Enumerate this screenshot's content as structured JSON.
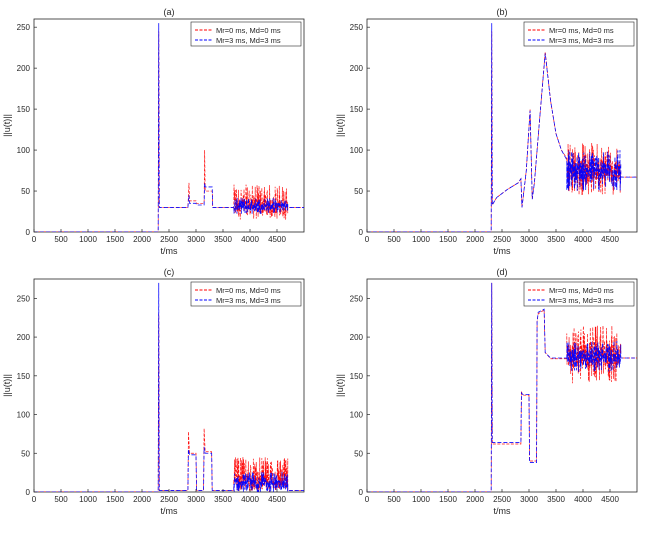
{
  "figure": {
    "background": "#ffffff"
  },
  "legend_style": {
    "red": "#ff0000",
    "blue": "#0000ff"
  },
  "chart_data": [
    {
      "id": "a",
      "type": "line",
      "title": "(a)",
      "xlabel": "t/ms",
      "ylabel": "||u(t)||",
      "xlim": [
        0,
        5000
      ],
      "ylim": [
        0,
        260
      ],
      "xticks": [
        "0",
        "500",
        "1000",
        "1500",
        "2000",
        "2500",
        "3000",
        "3500",
        "4000",
        "4500"
      ],
      "yticks": [
        "0",
        "50",
        "100",
        "150",
        "200",
        "250"
      ],
      "legend": [
        "Mr=0 ms, Md=0 ms",
        "Mr=3 ms, Md=3 ms"
      ],
      "legend_position": "top-right",
      "series": [
        {
          "name": "Mr=0 ms, Md=0 ms",
          "color": "#ff0000",
          "style": "dashed",
          "points": [
            [
              0,
              0
            ],
            [
              2300,
              0
            ],
            [
              2310,
              245
            ],
            [
              2320,
              30
            ],
            [
              2850,
              30
            ],
            [
              2870,
              60
            ],
            [
              2880,
              38
            ],
            [
              3000,
              38
            ],
            [
              3010,
              35
            ],
            [
              3150,
              35
            ],
            [
              3160,
              100
            ],
            [
              3170,
              50
            ],
            [
              3300,
              50
            ],
            [
              3310,
              30
            ],
            [
              3700,
              30
            ]
          ],
          "noise": {
            "from": 3700,
            "to": 4700,
            "center": 31,
            "min": 15,
            "max": 58
          },
          "tail": [
            [
              4700,
              30
            ],
            [
              5000,
              30
            ]
          ]
        },
        {
          "name": "Mr=3 ms, Md=3 ms",
          "color": "#0000ff",
          "style": "dashed",
          "points": [
            [
              0,
              0
            ],
            [
              2300,
              0
            ],
            [
              2310,
              255
            ],
            [
              2320,
              30
            ],
            [
              2850,
              30
            ],
            [
              2870,
              45
            ],
            [
              2880,
              35
            ],
            [
              3000,
              35
            ],
            [
              3010,
              33
            ],
            [
              3150,
              33
            ],
            [
              3160,
              60
            ],
            [
              3170,
              55
            ],
            [
              3300,
              55
            ],
            [
              3310,
              30
            ],
            [
              3700,
              30
            ]
          ],
          "noise": {
            "from": 3700,
            "to": 4700,
            "center": 31,
            "min": 22,
            "max": 42
          },
          "tail": [
            [
              4700,
              30
            ],
            [
              5000,
              30
            ]
          ]
        }
      ]
    },
    {
      "id": "b",
      "type": "line",
      "title": "(b)",
      "xlabel": "t/ms",
      "ylabel": "||u(t)||",
      "xlim": [
        0,
        5000
      ],
      "ylim": [
        0,
        260
      ],
      "xticks": [
        "0",
        "500",
        "1000",
        "1500",
        "2000",
        "2500",
        "3000",
        "3500",
        "4000",
        "4500"
      ],
      "yticks": [
        "0",
        "50",
        "100",
        "150",
        "200",
        "250"
      ],
      "legend": [
        "Mr=0 ms, Md=0 ms",
        "Mr=3 ms, Md=3 ms"
      ],
      "legend_position": "top-right",
      "series": [
        {
          "name": "Mr=0 ms, Md=0 ms",
          "color": "#ff0000",
          "style": "dashed",
          "points": [
            [
              0,
              0
            ],
            [
              2300,
              0
            ],
            [
              2310,
              245
            ],
            [
              2320,
              33
            ],
            [
              2400,
              42
            ],
            [
              2600,
              52
            ],
            [
              2800,
              60
            ],
            [
              2850,
              65
            ],
            [
              2870,
              30
            ],
            [
              2950,
              75
            ],
            [
              3020,
              150
            ],
            [
              3060,
              40
            ],
            [
              3100,
              60
            ],
            [
              3200,
              140
            ],
            [
              3300,
              220
            ],
            [
              3400,
              160
            ],
            [
              3500,
              120
            ],
            [
              3600,
              100
            ],
            [
              3700,
              90
            ]
          ],
          "noise": {
            "from": 3700,
            "to": 4700,
            "center": 75,
            "min": 45,
            "max": 110
          },
          "tail": [
            [
              4700,
              67
            ],
            [
              5000,
              67
            ]
          ]
        },
        {
          "name": "Mr=3 ms, Md=3 ms",
          "color": "#0000ff",
          "style": "dashed",
          "points": [
            [
              0,
              0
            ],
            [
              2300,
              0
            ],
            [
              2310,
              255
            ],
            [
              2320,
              33
            ],
            [
              2400,
              42
            ],
            [
              2600,
              52
            ],
            [
              2800,
              60
            ],
            [
              2850,
              65
            ],
            [
              2870,
              30
            ],
            [
              2950,
              75
            ],
            [
              3020,
              148
            ],
            [
              3060,
              40
            ],
            [
              3100,
              60
            ],
            [
              3200,
              140
            ],
            [
              3300,
              218
            ],
            [
              3400,
              160
            ],
            [
              3500,
              120
            ],
            [
              3600,
              100
            ],
            [
              3700,
              88
            ]
          ],
          "noise": {
            "from": 3700,
            "to": 4700,
            "center": 74,
            "min": 50,
            "max": 100
          },
          "tail": [
            [
              4700,
              67
            ],
            [
              5000,
              67
            ]
          ]
        }
      ]
    },
    {
      "id": "c",
      "type": "line",
      "title": "(c)",
      "xlabel": "t/ms",
      "ylabel": "||u(t)||",
      "xlim": [
        0,
        5000
      ],
      "ylim": [
        0,
        275
      ],
      "xticks": [
        "0",
        "500",
        "1000",
        "1500",
        "2000",
        "2500",
        "3000",
        "3500",
        "4000",
        "4500"
      ],
      "yticks": [
        "0",
        "50",
        "100",
        "150",
        "200",
        "250"
      ],
      "legend": [
        "Mr=0 ms, Md=0 ms",
        "Mr=3 ms, Md=3 ms"
      ],
      "legend_position": "top-right",
      "series": [
        {
          "name": "Mr=0 ms, Md=0 ms",
          "color": "#ff0000",
          "style": "dashed",
          "points": [
            [
              0,
              0
            ],
            [
              2300,
              0
            ],
            [
              2310,
              230
            ],
            [
              2320,
              2
            ],
            [
              2850,
              2
            ],
            [
              2860,
              78
            ],
            [
              2880,
              50
            ],
            [
              3000,
              50
            ],
            [
              3010,
              2
            ],
            [
              3140,
              2
            ],
            [
              3150,
              82
            ],
            [
              3170,
              52
            ],
            [
              3290,
              52
            ],
            [
              3300,
              2
            ],
            [
              3700,
              2
            ]
          ],
          "noise": {
            "from": 3700,
            "to": 4700,
            "center": 12,
            "min": 0,
            "max": 45
          },
          "tail": [
            [
              4700,
              2
            ],
            [
              5000,
              2
            ]
          ]
        },
        {
          "name": "Mr=3 ms, Md=3 ms",
          "color": "#0000ff",
          "style": "dashed",
          "points": [
            [
              0,
              0
            ],
            [
              2300,
              0
            ],
            [
              2310,
              270
            ],
            [
              2320,
              2
            ],
            [
              2850,
              2
            ],
            [
              2860,
              55
            ],
            [
              2880,
              48
            ],
            [
              3000,
              48
            ],
            [
              3010,
              2
            ],
            [
              3140,
              2
            ],
            [
              3150,
              58
            ],
            [
              3170,
              50
            ],
            [
              3290,
              50
            ],
            [
              3300,
              2
            ],
            [
              3700,
              2
            ]
          ],
          "noise": {
            "from": 3700,
            "to": 4700,
            "center": 10,
            "min": 0,
            "max": 26
          },
          "tail": [
            [
              4700,
              2
            ],
            [
              5000,
              2
            ]
          ]
        }
      ]
    },
    {
      "id": "d",
      "type": "line",
      "title": "(d)",
      "xlabel": "t/ms",
      "ylabel": "||u(t)||",
      "xlim": [
        0,
        5000
      ],
      "ylim": [
        0,
        275
      ],
      "xticks": [
        "0",
        "500",
        "1000",
        "1500",
        "2000",
        "2500",
        "3000",
        "3500",
        "4000",
        "4500"
      ],
      "yticks": [
        "0",
        "50",
        "100",
        "150",
        "200",
        "250"
      ],
      "legend": [
        "Mr=0 ms, Md=0 ms",
        "Mr=3 ms, Md=3 ms"
      ],
      "legend_position": "top-right",
      "series": [
        {
          "name": "Mr=0 ms, Md=0 ms",
          "color": "#ff0000",
          "style": "dashed",
          "points": [
            [
              0,
              0
            ],
            [
              2300,
              0
            ],
            [
              2310,
              270
            ],
            [
              2320,
              62
            ],
            [
              2850,
              62
            ],
            [
              2860,
              130
            ],
            [
              2880,
              125
            ],
            [
              3000,
              125
            ],
            [
              3010,
              40
            ],
            [
              3140,
              40
            ],
            [
              3150,
              220
            ],
            [
              3170,
              230
            ],
            [
              3280,
              235
            ],
            [
              3300,
              180
            ],
            [
              3400,
              172
            ],
            [
              3700,
              172
            ]
          ],
          "noise": {
            "from": 3700,
            "to": 4700,
            "center": 175,
            "min": 140,
            "max": 215
          },
          "tail": [
            [
              4700,
              173
            ],
            [
              5000,
              173
            ]
          ]
        },
        {
          "name": "Mr=3 ms, Md=3 ms",
          "color": "#0000ff",
          "style": "dashed",
          "points": [
            [
              0,
              0
            ],
            [
              2300,
              0
            ],
            [
              2310,
              270
            ],
            [
              2320,
              64
            ],
            [
              2850,
              64
            ],
            [
              2860,
              128
            ],
            [
              2880,
              126
            ],
            [
              3000,
              126
            ],
            [
              3010,
              38
            ],
            [
              3140,
              38
            ],
            [
              3150,
              220
            ],
            [
              3170,
              232
            ],
            [
              3280,
              236
            ],
            [
              3300,
              180
            ],
            [
              3400,
              173
            ],
            [
              3700,
              173
            ]
          ],
          "noise": {
            "from": 3700,
            "to": 4700,
            "center": 175,
            "min": 155,
            "max": 195
          },
          "tail": [
            [
              4700,
              173
            ],
            [
              5000,
              173
            ]
          ]
        }
      ]
    }
  ]
}
